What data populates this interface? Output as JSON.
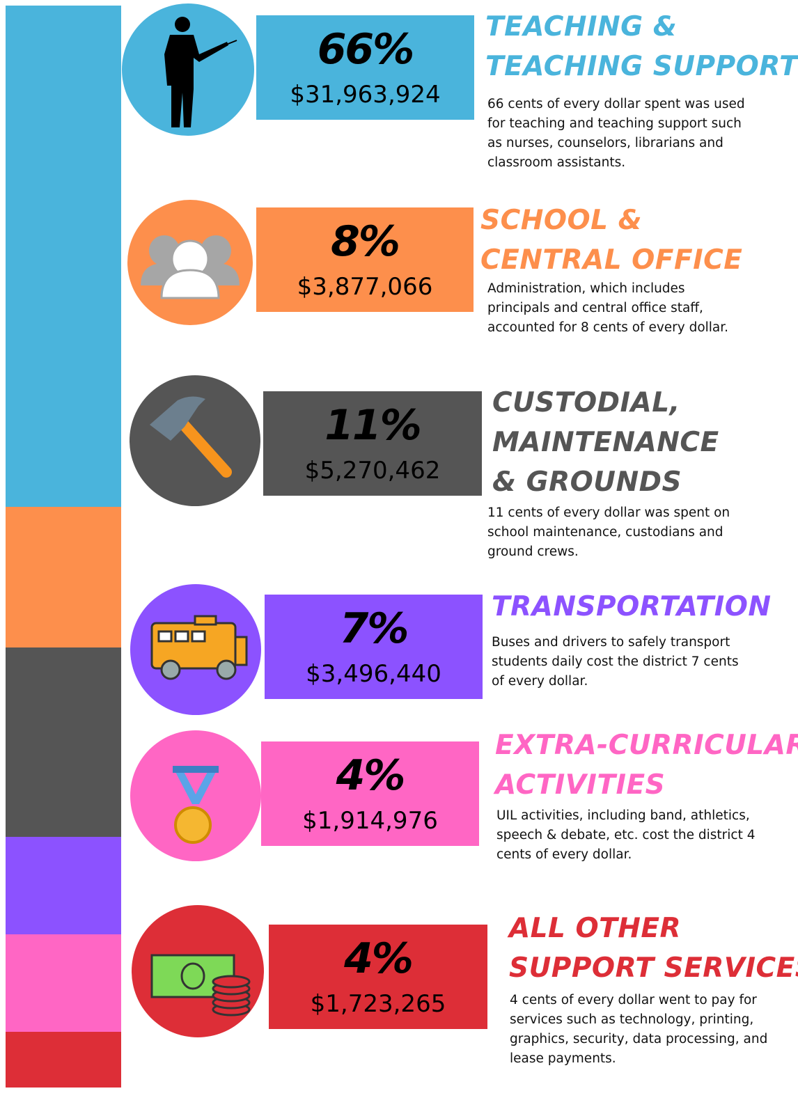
{
  "items": [
    {
      "percent": "66%",
      "amount": "$31,963,924",
      "title": [
        "TEACHING &",
        "TEACHING SUPPORT"
      ],
      "description": "66 cents of every dollar spent was used for teaching and teaching support such as nurses, counselors, librarians and classroom assistants."
    },
    {
      "percent": "8%",
      "amount": "$3,877,066",
      "title": [
        "SCHOOL &",
        "CENTRAL OFFICE"
      ],
      "description": "Administration, which includes principals and central office staff, accounted for 8 cents of every dollar."
    },
    {
      "percent": "11%",
      "amount": "$5,270,462",
      "title": [
        "CUSTODIAL,",
        "MAINTENANCE",
        "& GROUNDS"
      ],
      "description": "11 cents of every dollar was spent on school maintenance, custodians and ground crews."
    },
    {
      "percent": "7%",
      "amount": "$3,496,440",
      "title": [
        "TRANSPORTATION"
      ],
      "description": "Buses and drivers to safely transport students daily cost the district 7 cents of every dollar."
    },
    {
      "percent": "4%",
      "amount": "$1,914,976",
      "title": [
        "EXTRA-CURRICULAR",
        "ACTIVITIES"
      ],
      "description": "UIL activities, including band, athletics, speech & debate, etc. cost the district 4 cents of every dollar."
    },
    {
      "percent": "4%",
      "amount": "$1,723,265",
      "title": [
        "ALL OTHER",
        "SUPPORT SERVICES"
      ],
      "description": "4 cents of every dollar went to pay for services such as technology, printing, graphics, security, data processing, and lease payments."
    }
  ]
}
